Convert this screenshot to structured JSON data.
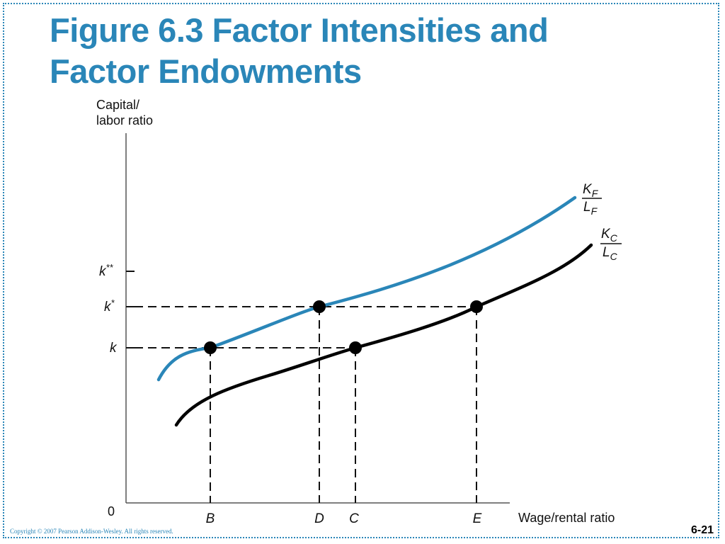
{
  "slide": {
    "title_line1": "Figure 6.3 Factor Intensities and",
    "title_line2": "Factor Endowments",
    "copyright": "Copyright © 2007 Pearson Addison-Wesley. All rights reserved.",
    "page_number": "6-21"
  },
  "figure": {
    "y_axis_label_line1": "Capital/",
    "y_axis_label_line2": "labor ratio",
    "x_axis_label": "Wage/rental ratio",
    "origin_label": "0",
    "y_ticks": [
      {
        "label": "k**",
        "base": "k",
        "sup": "**"
      },
      {
        "label": "k*",
        "base": "k",
        "sup": "*"
      },
      {
        "label": "k",
        "base": "k",
        "sup": ""
      }
    ],
    "x_ticks": [
      "B",
      "D",
      "C",
      "E"
    ],
    "curves": [
      {
        "name": "KF/LF",
        "num": "K",
        "num_sub": "F",
        "den": "L",
        "den_sub": "F",
        "color": "#2a86b8"
      },
      {
        "name": "KC/LC",
        "num": "K",
        "num_sub": "C",
        "den": "L",
        "den_sub": "C",
        "color": "#000000"
      }
    ],
    "points": [
      {
        "x_label": "B",
        "y_label": "k",
        "curve": "KF/LF"
      },
      {
        "x_label": "D",
        "y_label": "k*",
        "curve": "KF/LF"
      },
      {
        "x_label": "C",
        "y_label": "k",
        "curve": "KC/LC"
      },
      {
        "x_label": "E",
        "y_label": "k*",
        "curve": "KC/LC"
      }
    ]
  }
}
